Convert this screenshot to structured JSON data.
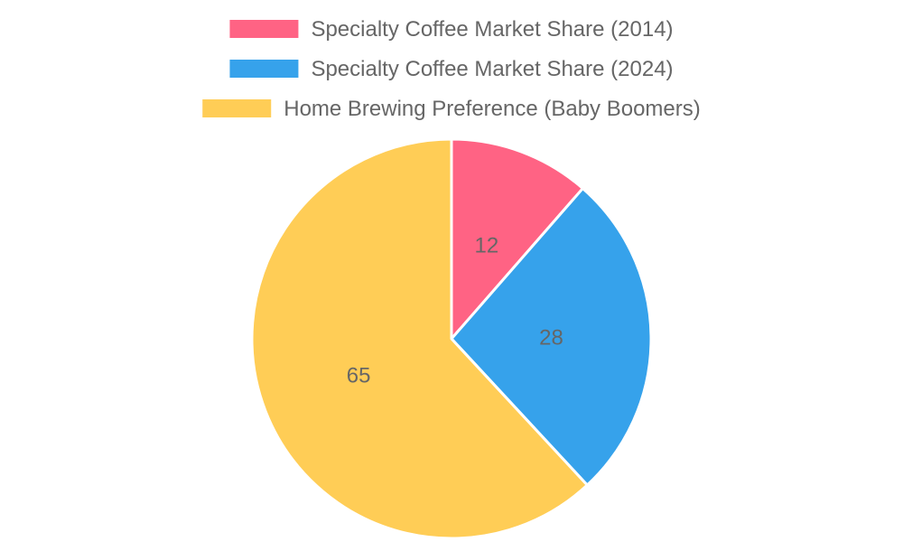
{
  "chart_data": {
    "type": "pie",
    "categories": [
      "Specialty Coffee Market Share (2014)",
      "Specialty Coffee Market Share (2024)",
      "Home Brewing Preference (Baby Boomers)"
    ],
    "values": [
      12,
      28,
      65
    ],
    "colors": [
      "#FF6384",
      "#36A2EB",
      "#FFCD56"
    ],
    "border_color": "#FFFFFF",
    "legend_position": "top",
    "data_labels_shown": true
  }
}
